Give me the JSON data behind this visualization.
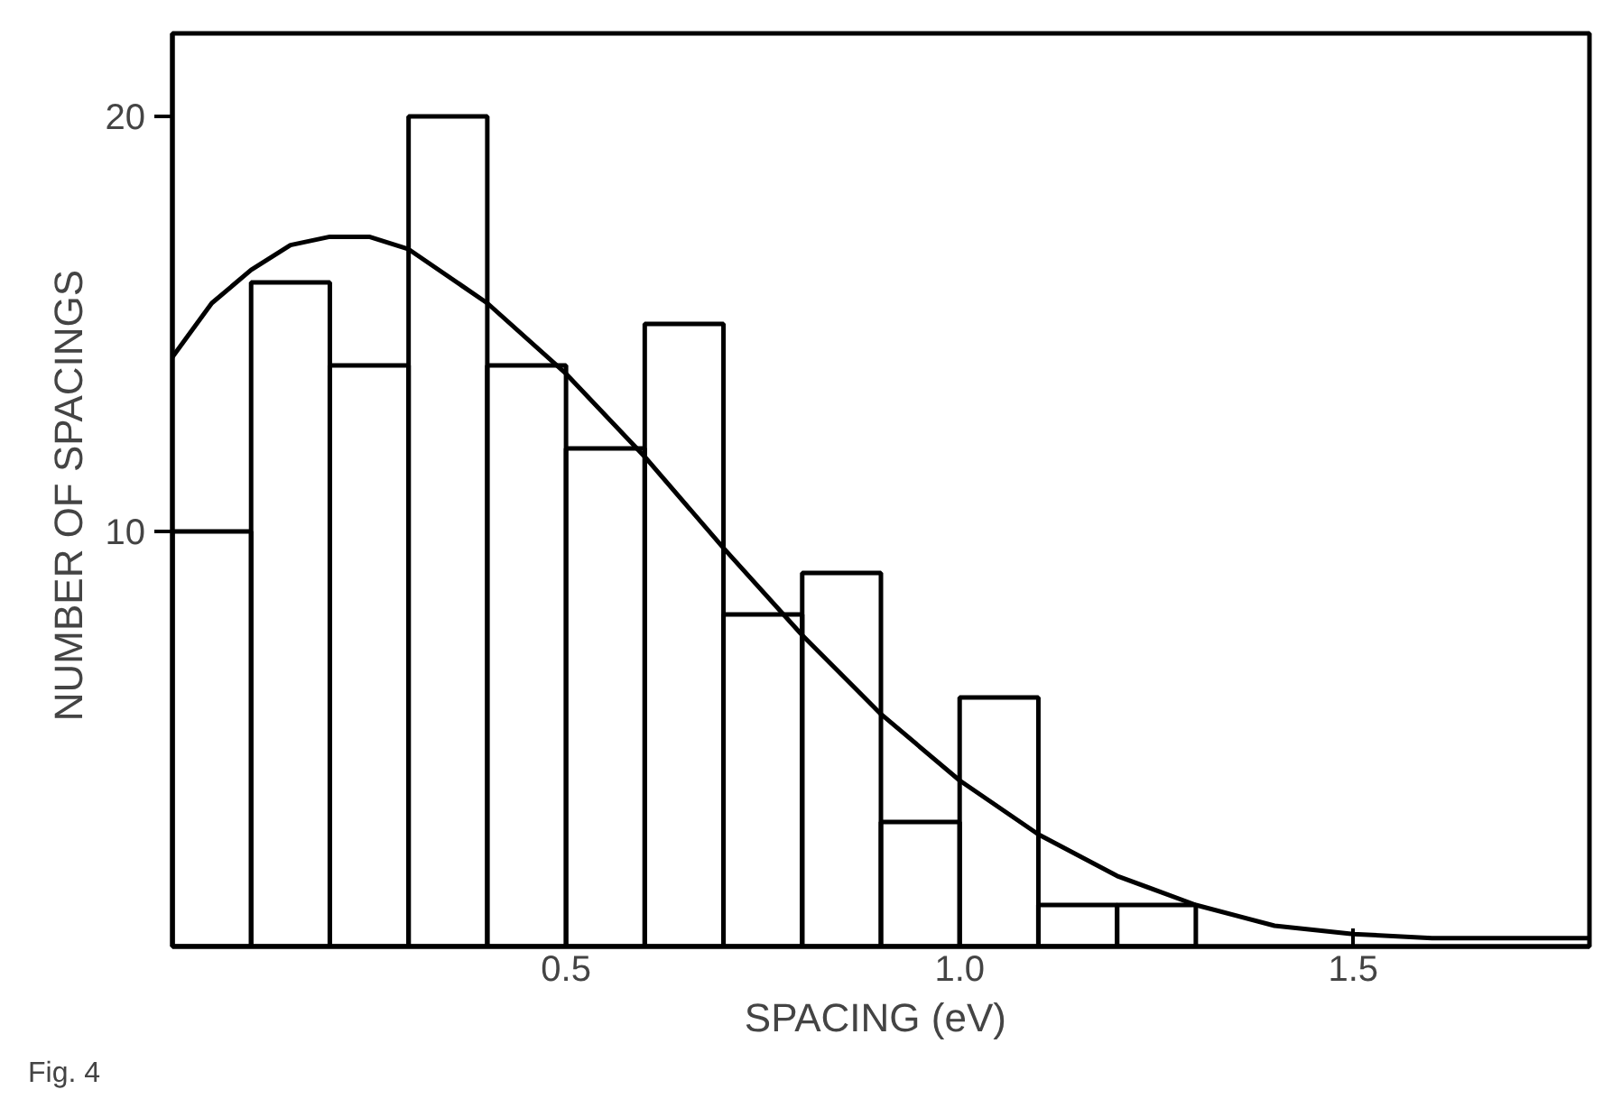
{
  "chart_data": {
    "type": "histogram",
    "xlabel": "SPACING  (eV)",
    "ylabel": "NUMBER  OF SPACINGS",
    "annotations": [
      "Fig. 4"
    ],
    "series": [
      {
        "color": "#000000",
        "bins": [
          0,
          0.1,
          0.2,
          0.3,
          0.4,
          0.5,
          0.6,
          0.7,
          0.8,
          0.9,
          1.0,
          1.1,
          1.2,
          1.3
        ],
        "values": [
          10,
          16,
          14,
          20,
          14,
          12,
          15,
          8,
          9,
          3,
          6,
          1,
          1
        ]
      },
      {
        "type": "line",
        "color": "#000000",
        "x": [
          0,
          0.05,
          0.1,
          0.15,
          0.2,
          0.25,
          0.3,
          0.4,
          0.5,
          0.6,
          0.7,
          0.8,
          0.9,
          1.0,
          1.1,
          1.2,
          1.3,
          1.4,
          1.5,
          1.6,
          1.8
        ],
        "values": [
          14.2,
          15.5,
          16.3,
          16.9,
          17.1,
          17.1,
          16.8,
          15.5,
          13.8,
          11.8,
          9.6,
          7.5,
          5.6,
          4.0,
          2.7,
          1.7,
          1.0,
          0.5,
          0.3,
          0.2,
          0.2
        ]
      }
    ],
    "xlim": [
      0,
      1.8
    ],
    "ylim": [
      0,
      22
    ],
    "xticks": [
      0.5,
      {
        "value": 1.0,
        "label": "1.0"
      },
      1.5
    ],
    "yticks": [
      10,
      20
    ],
    "grid": false,
    "line_style": "solid",
    "marker": "none"
  }
}
